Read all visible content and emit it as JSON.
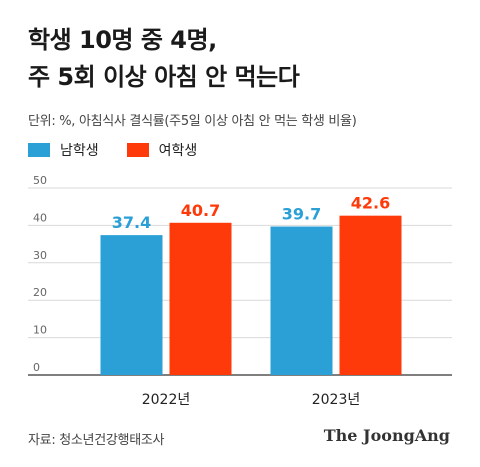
{
  "title_line1": "학생 10명 중 4명,",
  "title_line2": "주 5회 이상 아침 안 먹는다",
  "subtitle": "단위: %, 아침식사 결식률(주5일 이상 아침 안 먹는 학생 비율)",
  "source": "자료: 청소년건강행태조사",
  "brand": "The JoongAng",
  "colors": {
    "male": "#2aa0d6",
    "female": "#ff3a0a",
    "grid": "#d9d9d9",
    "axis": "#333333"
  },
  "chart_data": {
    "type": "bar",
    "categories": [
      "2022년",
      "2023년"
    ],
    "series": [
      {
        "name": "남학생",
        "values": [
          37.4,
          39.7
        ],
        "labels": [
          "37.4",
          "39.7"
        ]
      },
      {
        "name": "여학생",
        "values": [
          40.7,
          42.6
        ],
        "labels": [
          "40.7",
          "42.6"
        ]
      }
    ],
    "ylim": [
      0,
      50
    ],
    "yticks": [
      "0",
      "10",
      "20",
      "30",
      "40",
      "50"
    ],
    "grid": true,
    "legend": "top-left"
  }
}
